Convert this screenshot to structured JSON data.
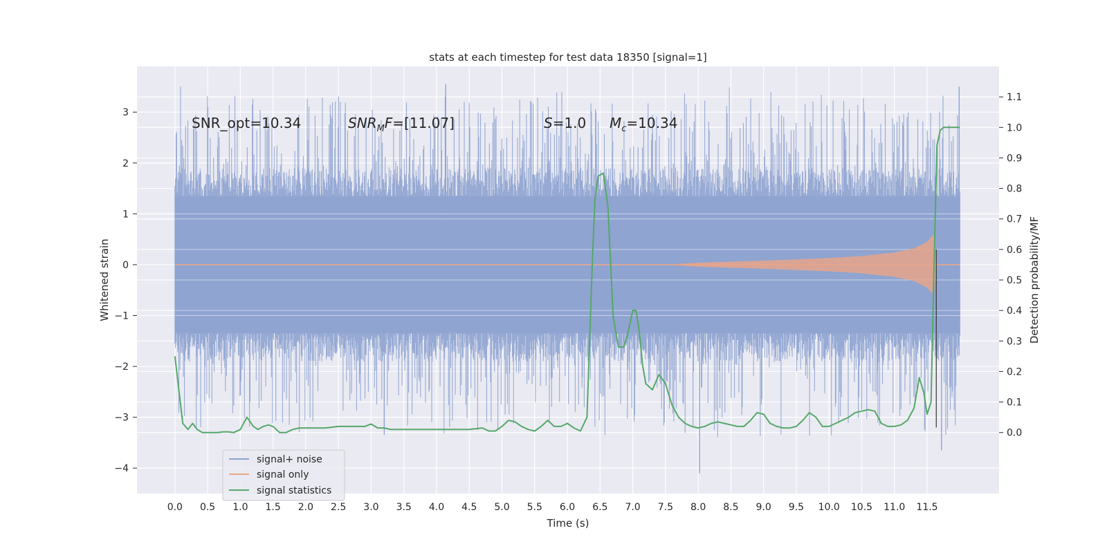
{
  "chart_data": {
    "type": "line",
    "title": "stats at each timestep for test data 18350 [signal=1]",
    "xlabel": "Time (s)",
    "ylabel": "Whitened strain",
    "y2label": "Detection probability/MF",
    "xlim": [
      -0.58,
      12.6
    ],
    "ylim": [
      -4.5,
      3.9
    ],
    "y2lim": [
      -0.2,
      1.2
    ],
    "xticks": [
      "0.0",
      "0.5",
      "1.0",
      "1.5",
      "2.0",
      "2.5",
      "3.0",
      "3.5",
      "4.0",
      "4.5",
      "5.0",
      "5.5",
      "6.0",
      "6.5",
      "7.0",
      "7.5",
      "8.0",
      "8.5",
      "9.0",
      "9.5",
      "10.0",
      "10.5",
      "11.0",
      "11.5"
    ],
    "yticks": [
      "3",
      "2",
      "1",
      "0",
      "−1",
      "−2",
      "−3",
      "−4"
    ],
    "y2ticks": [
      "1.1",
      "1.0",
      "0.9",
      "0.8",
      "0.7",
      "0.6",
      "0.5",
      "0.4",
      "0.3",
      "0.2",
      "0.1",
      "0.0"
    ],
    "grid": true,
    "legend_position": "lower-left",
    "annotations": {
      "snr_opt": "SNR_opt=10.34",
      "snr_mf_main": "SNR",
      "snr_mf_sub": "M",
      "snr_mf_rest": "F",
      "snr_mf_value": "=[11.07]",
      "s_italic": "S",
      "s_value": "=1.0",
      "mc_main": "M",
      "mc_sub": "c",
      "mc_value": "=10.34"
    },
    "series": [
      {
        "name": "signal+ noise",
        "color": "#8ea3d0",
        "axis": "left",
        "description_range": "noise band approx ±1.5 with spikes to 3.55 and −4.1",
        "x_range": [
          0.0,
          12.0
        ]
      },
      {
        "name": "signal only",
        "color": "#e8a58a",
        "axis": "left",
        "x_range": [
          0.0,
          12.0
        ],
        "envelope": {
          "x": [
            7.5,
            8.0,
            9.0,
            10.0,
            10.5,
            11.0,
            11.3,
            11.5,
            11.6,
            11.65,
            12.0
          ],
          "amplitude": [
            0.0,
            0.04,
            0.08,
            0.13,
            0.17,
            0.24,
            0.32,
            0.45,
            0.6,
            0.0,
            0.0
          ]
        }
      },
      {
        "name": "signal statistics",
        "color": "#55a868",
        "axis": "right",
        "x": [
          0.0,
          0.06,
          0.12,
          0.2,
          0.27,
          0.34,
          0.42,
          0.5,
          0.57,
          0.65,
          0.74,
          0.82,
          0.9,
          1.0,
          1.1,
          1.2,
          1.27,
          1.35,
          1.43,
          1.5,
          1.6,
          1.7,
          1.8,
          1.9,
          2.0,
          2.1,
          2.2,
          2.3,
          2.5,
          2.7,
          2.9,
          3.0,
          3.1,
          3.2,
          3.3,
          3.5,
          3.7,
          3.9,
          4.1,
          4.3,
          4.5,
          4.7,
          4.8,
          4.9,
          5.0,
          5.1,
          5.2,
          5.3,
          5.4,
          5.5,
          5.6,
          5.7,
          5.8,
          5.9,
          6.0,
          6.1,
          6.2,
          6.3,
          6.38,
          6.42,
          6.47,
          6.55,
          6.62,
          6.7,
          6.78,
          6.86,
          6.92,
          7.0,
          7.05,
          7.1,
          7.15,
          7.2,
          7.3,
          7.4,
          7.5,
          7.6,
          7.7,
          7.8,
          7.9,
          8.0,
          8.1,
          8.2,
          8.3,
          8.4,
          8.5,
          8.6,
          8.7,
          8.8,
          8.9,
          9.0,
          9.1,
          9.2,
          9.3,
          9.4,
          9.5,
          9.6,
          9.7,
          9.8,
          9.9,
          10.0,
          10.1,
          10.2,
          10.3,
          10.4,
          10.5,
          10.6,
          10.7,
          10.8,
          10.9,
          11.0,
          11.1,
          11.2,
          11.3,
          11.38,
          11.45,
          11.5,
          11.56,
          11.6,
          11.65,
          11.7,
          11.75,
          11.8,
          11.9,
          12.0
        ],
        "values": [
          0.25,
          0.14,
          0.03,
          0.01,
          0.03,
          0.01,
          0.0,
          0.0,
          0.0,
          0.0,
          0.002,
          0.002,
          0.0,
          0.01,
          0.05,
          0.02,
          0.01,
          0.02,
          0.025,
          0.02,
          0.0,
          0.0,
          0.01,
          0.015,
          0.015,
          0.015,
          0.015,
          0.015,
          0.02,
          0.02,
          0.02,
          0.028,
          0.015,
          0.015,
          0.01,
          0.01,
          0.01,
          0.01,
          0.01,
          0.01,
          0.01,
          0.015,
          0.005,
          0.005,
          0.02,
          0.04,
          0.035,
          0.02,
          0.01,
          0.005,
          0.02,
          0.04,
          0.02,
          0.02,
          0.03,
          0.015,
          0.005,
          0.05,
          0.55,
          0.76,
          0.84,
          0.85,
          0.74,
          0.38,
          0.28,
          0.28,
          0.32,
          0.4,
          0.4,
          0.33,
          0.22,
          0.16,
          0.14,
          0.19,
          0.16,
          0.09,
          0.05,
          0.03,
          0.02,
          0.015,
          0.02,
          0.03,
          0.035,
          0.03,
          0.025,
          0.02,
          0.02,
          0.04,
          0.065,
          0.06,
          0.03,
          0.02,
          0.015,
          0.015,
          0.02,
          0.04,
          0.065,
          0.05,
          0.02,
          0.02,
          0.03,
          0.04,
          0.05,
          0.065,
          0.07,
          0.075,
          0.07,
          0.03,
          0.02,
          0.02,
          0.025,
          0.04,
          0.08,
          0.18,
          0.13,
          0.06,
          0.1,
          0.5,
          0.94,
          0.99,
          1.0,
          1.0,
          1.0,
          1.0
        ]
      }
    ]
  }
}
